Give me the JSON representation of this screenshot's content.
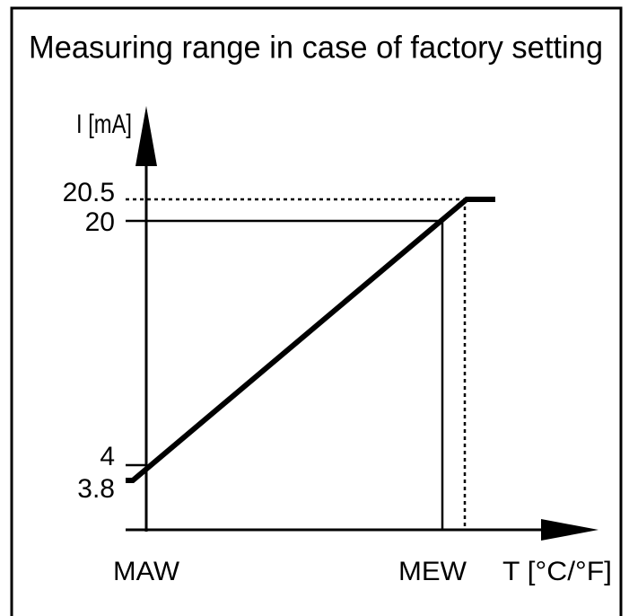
{
  "title": "Measuring range in case of factory setting",
  "y_axis": {
    "label": "I [mA]",
    "ticks": [
      "20.5",
      "20",
      "4",
      "3.8"
    ]
  },
  "x_axis": {
    "label": "T [°C/°F]",
    "ticks": [
      "MAW",
      "MEW"
    ]
  }
}
